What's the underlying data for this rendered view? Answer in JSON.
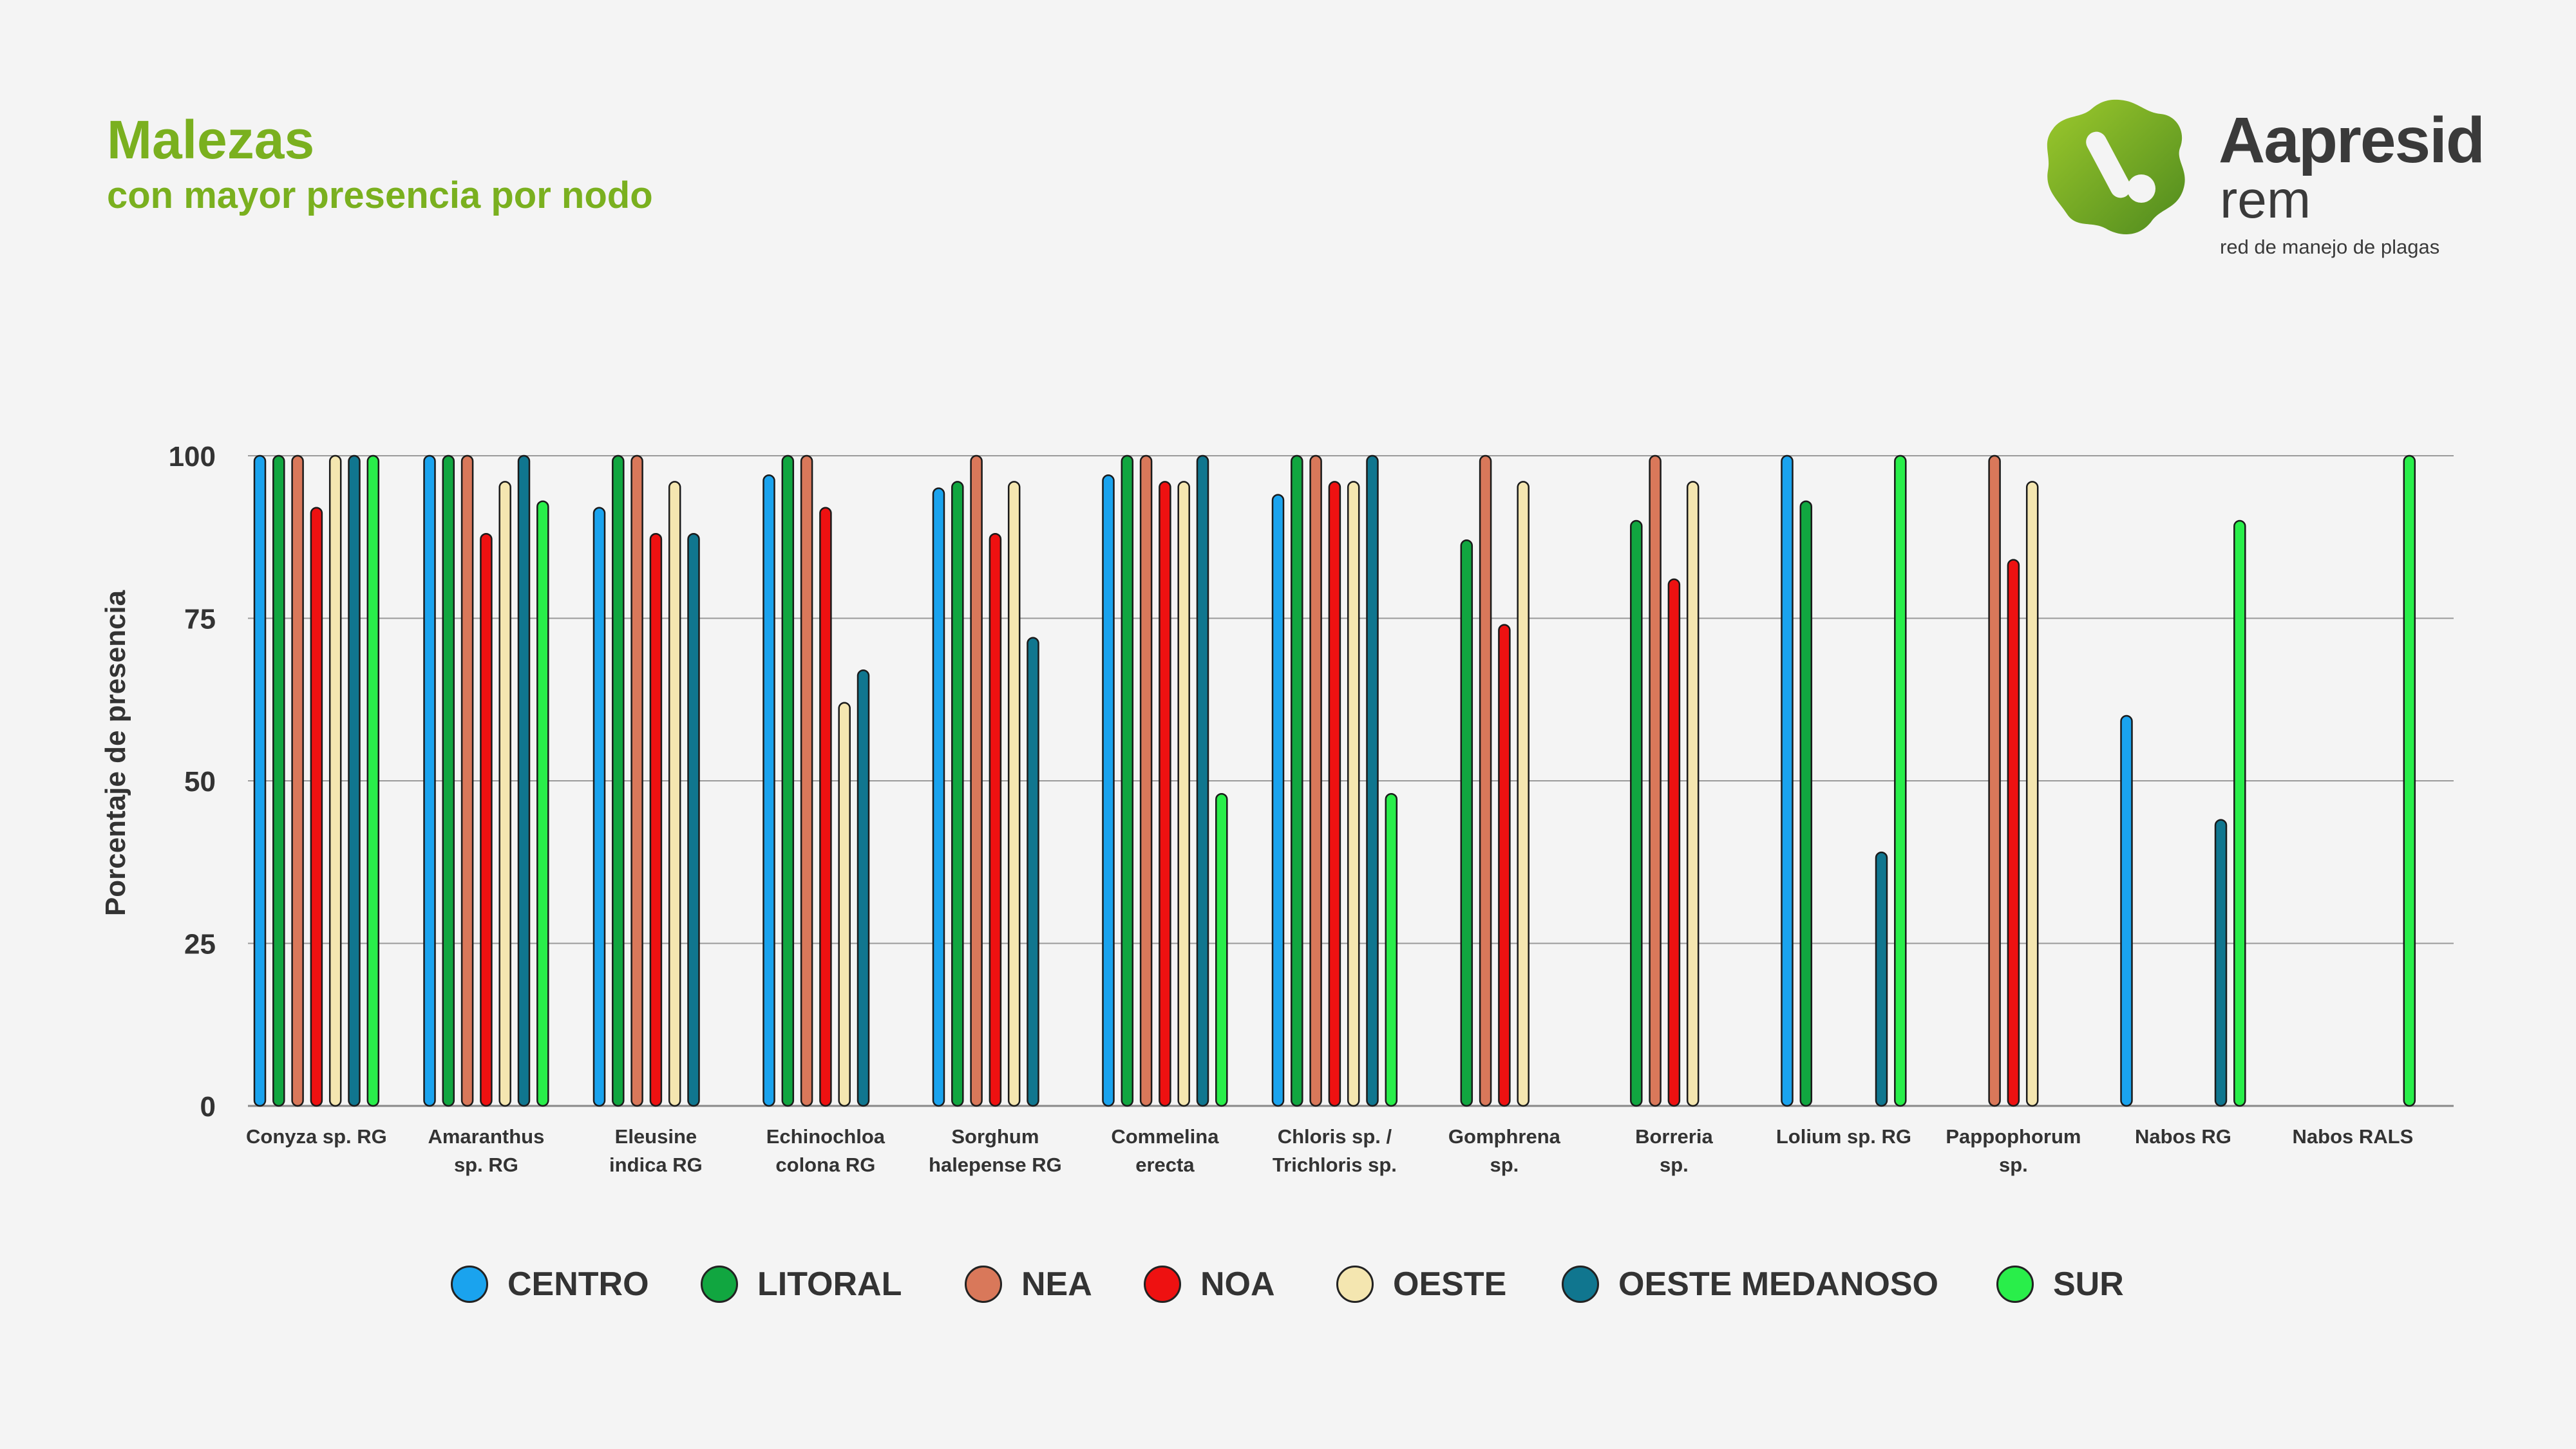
{
  "header": {
    "title": "Malezas",
    "subtitle": "con mayor presencia por nodo"
  },
  "logo": {
    "name": "Aapresid",
    "sub": "rem",
    "tagline": "red de manejo de plagas",
    "colors": {
      "leaf_light": "#8cbf26",
      "leaf_dark": "#4f8a1e",
      "text": "#3a3a3a"
    }
  },
  "chart_data": {
    "type": "bar",
    "ylabel": "Porcentaje de presencia",
    "ylim": [
      0,
      100
    ],
    "yticks": [
      0,
      25,
      50,
      75,
      100
    ],
    "grid": true,
    "legend_position": "bottom",
    "categories": [
      [
        "Conyza sp. RG"
      ],
      [
        "Amaranthus",
        "sp. RG"
      ],
      [
        "Eleusine",
        "indica RG"
      ],
      [
        "Echinochloa",
        "colona RG"
      ],
      [
        "Sorghum",
        "halepense RG"
      ],
      [
        "Commelina",
        "erecta"
      ],
      [
        "Chloris sp. /",
        "Trichloris sp."
      ],
      [
        "Gomphrena",
        "sp."
      ],
      [
        "Borreria",
        "sp."
      ],
      [
        "Lolium sp. RG"
      ],
      [
        "Pappophorum",
        "sp."
      ],
      [
        "Nabos RG"
      ],
      [
        "Nabos RALS"
      ]
    ],
    "series": [
      {
        "name": "CENTRO",
        "color": "#1aa3ee",
        "values": [
          100,
          100,
          92,
          97,
          95,
          97,
          94,
          null,
          null,
          100,
          null,
          60,
          null
        ]
      },
      {
        "name": "LITORAL",
        "color": "#11a640",
        "values": [
          100,
          100,
          100,
          100,
          96,
          100,
          100,
          87,
          90,
          93,
          null,
          null,
          null
        ]
      },
      {
        "name": "NEA",
        "color": "#d9785a",
        "values": [
          100,
          100,
          100,
          100,
          100,
          100,
          100,
          100,
          100,
          null,
          100,
          null,
          null
        ]
      },
      {
        "name": "NOA",
        "color": "#ee1111",
        "values": [
          92,
          88,
          88,
          92,
          88,
          96,
          96,
          74,
          81,
          null,
          84,
          null,
          null
        ]
      },
      {
        "name": "OESTE",
        "color": "#f4e6b0",
        "values": [
          100,
          96,
          96,
          62,
          96,
          96,
          96,
          96,
          96,
          null,
          96,
          null,
          null
        ]
      },
      {
        "name": "OESTE MEDANOSO",
        "color": "#10768f",
        "values": [
          100,
          100,
          88,
          67,
          72,
          100,
          100,
          null,
          null,
          39,
          null,
          44,
          null
        ]
      },
      {
        "name": "SUR",
        "color": "#29ee4a",
        "values": [
          100,
          93,
          null,
          null,
          null,
          48,
          48,
          null,
          null,
          100,
          null,
          90,
          100
        ]
      }
    ]
  }
}
